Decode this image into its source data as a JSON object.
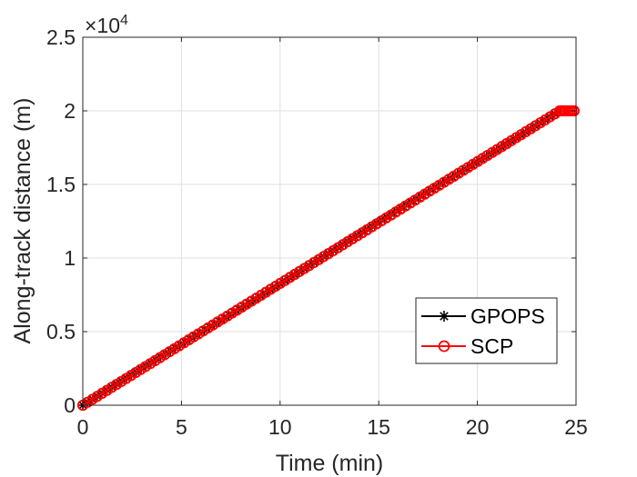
{
  "chart_data": {
    "type": "line",
    "xlabel": "Time (min)",
    "ylabel": "Along-track distance (m)",
    "xlim": [
      0,
      25
    ],
    "ylim": [
      0,
      25000
    ],
    "xticks": [
      0,
      5,
      10,
      15,
      20,
      25
    ],
    "yticks": [
      0,
      5000,
      10000,
      15000,
      20000,
      25000
    ],
    "ytick_labels": [
      "0",
      "0.5",
      "1",
      "1.5",
      "2",
      "2.5"
    ],
    "y_multiplier_base": "×10",
    "y_multiplier_exp": "4",
    "grid": true,
    "legend_position": "lower-right",
    "series": [
      {
        "name": "GPOPS",
        "color": "#000000",
        "marker": "asterisk",
        "x": [
          0,
          24.17
        ],
        "y": [
          0,
          20000
        ],
        "num_markers": 99
      },
      {
        "name": "SCP",
        "color": "#ff0000",
        "marker": "circle",
        "x": [
          0,
          24.17,
          24.9
        ],
        "y": [
          0,
          20000,
          20000
        ],
        "num_markers": 100,
        "plateau_markers": 7
      }
    ]
  }
}
